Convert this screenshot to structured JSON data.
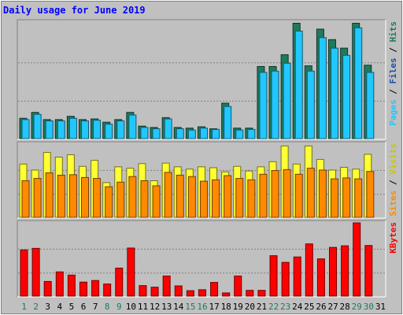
{
  "colors": {
    "background": "#c0c0c0",
    "title": "#0000ff",
    "pages": "#1f7a5c",
    "hits": "#22c7ff",
    "sites": "#ff8a00",
    "visits": "#ffff33",
    "kbytes": "#ff0000",
    "weekend_day_label": "#1f7a5c"
  },
  "chart_data": {
    "type": "bar",
    "title": "Daily usage for June 2019",
    "x": [
      1,
      2,
      3,
      4,
      5,
      6,
      7,
      8,
      9,
      10,
      11,
      12,
      13,
      14,
      15,
      16,
      17,
      18,
      19,
      20,
      21,
      22,
      23,
      24,
      25,
      26,
      27,
      28,
      29,
      30,
      31
    ],
    "x_tick_labels": [
      "1",
      "2",
      "3",
      "4",
      "5",
      "6",
      "7",
      "8",
      "9",
      "10",
      "11",
      "12",
      "13",
      "14",
      "15",
      "16",
      "17",
      "18",
      "19",
      "20",
      "21",
      "22",
      "23",
      "24",
      "25",
      "26",
      "27",
      "28",
      "29",
      "30",
      "31"
    ],
    "weekend_days": [
      1,
      2,
      8,
      9,
      15,
      16,
      22,
      23,
      29,
      30
    ],
    "panels": [
      {
        "name": "hits-files-pages",
        "y_max_label": "1778",
        "right_label_parts": [
          "Pages",
          " / ",
          "Files",
          " / ",
          "Hits"
        ],
        "series": [
          {
            "name": "Pages",
            "color": "#1f7a5c",
            "values": [
              310,
              400,
              290,
              290,
              340,
              290,
              300,
              250,
              290,
              400,
              190,
              170,
              320,
              170,
              160,
              180,
              150,
              540,
              160,
              160,
              1100,
              1100,
              1280,
              1760,
              1110,
              1670,
              1510,
              1380,
              1760,
              1120,
              0
            ]
          },
          {
            "name": "Files",
            "color": "#1b4fa8",
            "values": [
              290,
              370,
              270,
              270,
              310,
              270,
              280,
              220,
              270,
              360,
              170,
              150,
              300,
              150,
              130,
              160,
              140,
              490,
              130,
              140,
              1010,
              1030,
              1150,
              1640,
              1030,
              1540,
              1380,
              1270,
              1690,
              1010,
              0
            ]
          },
          {
            "name": "Hits",
            "color": "#22c7ff",
            "values": [
              290,
              370,
              270,
              270,
              310,
              270,
              280,
              220,
              270,
              360,
              170,
              150,
              300,
              150,
              130,
              160,
              140,
              490,
              130,
              140,
              1010,
              1030,
              1150,
              1640,
              1030,
              1540,
              1380,
              1270,
              1690,
              1010,
              0
            ]
          }
        ]
      },
      {
        "name": "visits-sites",
        "y_max_label": "158",
        "right_label_parts": [
          "Sites",
          " / ",
          "Visits"
        ],
        "series": [
          {
            "name": "Visits",
            "color": "#ffff33",
            "values": [
              115,
              102,
              140,
              130,
              135,
              110,
              123,
              75,
              109,
              106,
              116,
              79,
              117,
              109,
              104,
              109,
              107,
              98,
              110,
              100,
              109,
              120,
              154,
              115,
              154,
              125,
              102,
              108,
              104,
              136,
              0
            ]
          },
          {
            "name": "Sites",
            "color": "#ff8a00",
            "values": [
              79,
              84,
              96,
              91,
              92,
              86,
              84,
              66,
              76,
              88,
              79,
              68,
              97,
              91,
              88,
              78,
              81,
              90,
              84,
              81,
              93,
              101,
              103,
              93,
              106,
              102,
              83,
              85,
              83,
              99,
              0
            ]
          }
        ]
      },
      {
        "name": "kbytes",
        "y_max_label": "23011",
        "right_label_parts": [
          "KBytes"
        ],
        "series": [
          {
            "name": "KBytes",
            "color": "#ff0000",
            "values": [
              14500,
              15000,
              4600,
              7600,
              6600,
              4400,
              4900,
              3800,
              8800,
              15100,
              3300,
              2800,
              6300,
              3200,
              1700,
              2000,
              4300,
              1000,
              6300,
              1800,
              1800,
              12700,
              10600,
              12300,
              16400,
              11700,
              15300,
              15800,
              23011,
              15900,
              0
            ]
          }
        ]
      }
    ]
  }
}
